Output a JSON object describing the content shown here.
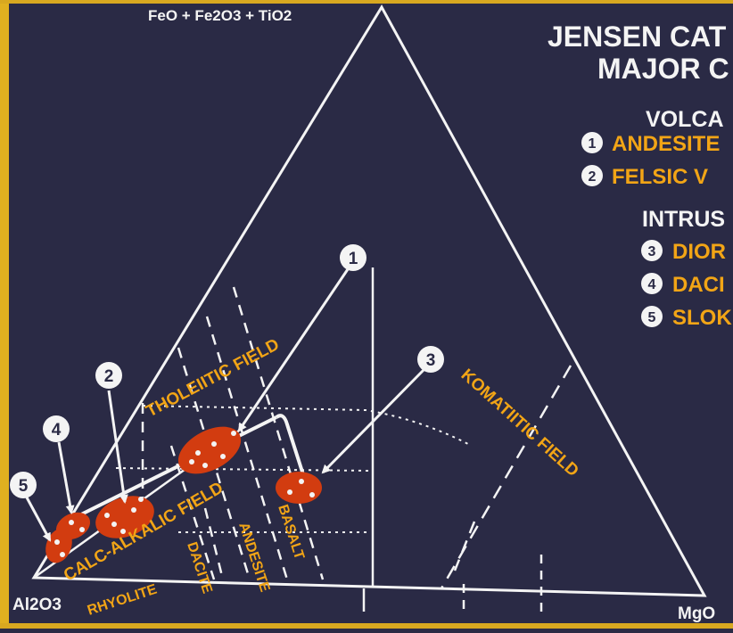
{
  "apex": {
    "top": "FeO + Fe2O3 + TiO2",
    "left": "Al2O3",
    "right": "MgO"
  },
  "title": {
    "line1": "JENSEN CAT",
    "line2": "MAJOR C"
  },
  "legend": {
    "volcanic_heading": "VOLCA",
    "intrusive_heading": "INTRUS",
    "items": [
      {
        "num": "1",
        "label": "ANDESITE"
      },
      {
        "num": "2",
        "label": "FELSIC V"
      },
      {
        "num": "3",
        "label": "DIOR"
      },
      {
        "num": "4",
        "label": "DACI"
      },
      {
        "num": "5",
        "label": "SLOK"
      }
    ]
  },
  "fields": {
    "tholeiitic": "THOLEIITIC FIELD",
    "calc_alkalic": "CALC-ALKALIC FIELD",
    "komatiitic": "KOMATIITIC FIELD"
  },
  "rock_types": [
    "RHYOLITE",
    "DACITE",
    "ANDESITE",
    "BASALT"
  ],
  "callouts": [
    "1",
    "2",
    "3",
    "4",
    "5"
  ],
  "colors": {
    "background": "#2a2a45",
    "line": "#f4f4f4",
    "field_label": "#f2a516",
    "sample_field": "#d23c10"
  }
}
